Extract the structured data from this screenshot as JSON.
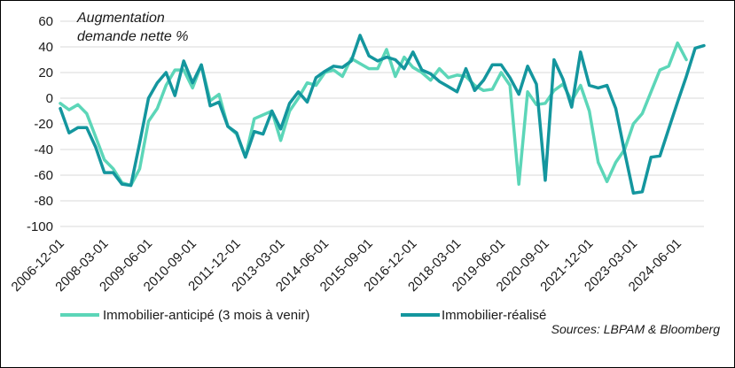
{
  "chart_data": {
    "type": "line",
    "annotation_line1": "Augmentation",
    "annotation_line2": "demande nette %",
    "source": "Sources: LBPAM & Bloomberg",
    "ylim": [
      -100,
      60
    ],
    "yticks": [
      "60",
      "40",
      "20",
      "0",
      "-20",
      "-40",
      "-60",
      "-80",
      "-100"
    ],
    "ytick_values": [
      60,
      40,
      20,
      0,
      -20,
      -40,
      -60,
      -80,
      -100
    ],
    "grid": "horizontal",
    "legend_position": "bottom",
    "x_tick_labels": [
      "2006-12-01",
      "2008-03-01",
      "2009-06-01",
      "2010-09-01",
      "2011-12-01",
      "2013-03-01",
      "2014-06-01",
      "2015-09-01",
      "2016-12-01",
      "2018-03-01",
      "2019-06-01",
      "2020-09-01",
      "2021-12-01",
      "2023-03-01",
      "2024-06-01"
    ],
    "x_start": "2006-12-01",
    "x_step": "quarterly",
    "series": [
      {
        "name": "Immobilier-anticipé (3 mois à venir)",
        "color": "#5cd6b8",
        "values": [
          -4,
          -9,
          -5,
          -12,
          -30,
          -48,
          -55,
          -66,
          -68,
          -55,
          -18,
          -8,
          10,
          22,
          22,
          8,
          26,
          -2,
          3,
          -22,
          -28,
          -46,
          -16,
          -13,
          -10,
          -33,
          -10,
          0,
          12,
          10,
          20,
          22,
          17,
          31,
          27,
          23,
          23,
          38,
          17,
          32,
          24,
          20,
          14,
          23,
          16,
          18,
          17,
          10,
          6,
          7,
          20,
          10,
          -67,
          5,
          -5,
          -4,
          6,
          11,
          -2,
          10,
          -10,
          -50,
          -65,
          -50,
          -40,
          -20,
          -12,
          5,
          22,
          25,
          43,
          30
        ]
      },
      {
        "name": "Immobilier-réalisé",
        "color": "#14969e",
        "values": [
          -8,
          -27,
          -23,
          -23,
          -38,
          -58,
          -58,
          -67,
          -68,
          -35,
          0,
          12,
          20,
          2,
          29,
          12,
          26,
          -6,
          -3,
          -22,
          -27,
          -46,
          -26,
          -28,
          -10,
          -24,
          -4,
          5,
          -3,
          16,
          21,
          25,
          24,
          29,
          49,
          33,
          29,
          32,
          30,
          23,
          36,
          22,
          19,
          13,
          9,
          5,
          23,
          6,
          14,
          26,
          26,
          16,
          3,
          25,
          11,
          -64,
          30,
          15,
          -7,
          36,
          10,
          8,
          10,
          -8,
          -42,
          -74,
          -73,
          -46,
          -45,
          -24,
          -3,
          17,
          39,
          41
        ]
      }
    ]
  }
}
